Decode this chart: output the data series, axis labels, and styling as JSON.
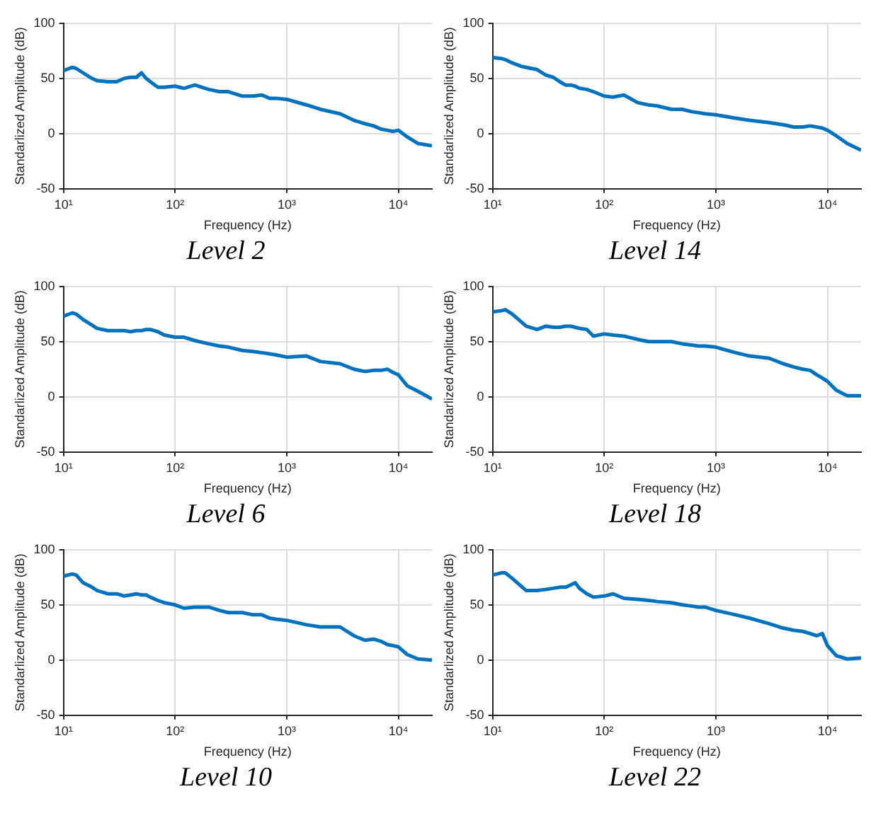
{
  "chart_data": [
    {
      "type": "line",
      "title": "Level 2",
      "xlabel": "Frequency (Hz)",
      "ylabel": "Standarlized Amplitude (dB)",
      "log": "x",
      "grid": true,
      "xlim": [
        10,
        20000
      ],
      "ylim": [
        -50,
        100
      ],
      "xticks": [
        {
          "value": 10,
          "label": "10¹"
        },
        {
          "value": 100,
          "label": "10²"
        },
        {
          "value": 1000,
          "label": "10³"
        },
        {
          "value": 10000,
          "label": "10⁴"
        }
      ],
      "yticks": [
        -50,
        0,
        50,
        100
      ],
      "x": [
        10,
        12,
        13,
        15,
        18,
        20,
        25,
        30,
        35,
        40,
        45,
        50,
        55,
        60,
        70,
        80,
        100,
        120,
        150,
        200,
        250,
        300,
        400,
        500,
        600,
        700,
        800,
        1000,
        1500,
        2000,
        3000,
        4000,
        5000,
        6000,
        7000,
        8000,
        9000,
        10000,
        12000,
        15000,
        20000
      ],
      "series": [
        {
          "color": "#0072bd",
          "values": [
            57,
            60,
            59,
            55,
            50,
            48,
            47,
            47,
            50,
            51,
            51,
            55,
            50,
            47,
            42,
            42,
            43,
            41,
            44,
            40,
            38,
            38,
            34,
            34,
            35,
            32,
            32,
            31,
            26,
            22,
            18,
            12,
            9,
            7,
            4,
            3,
            2,
            3,
            -3,
            -9,
            -11
          ]
        }
      ]
    },
    {
      "type": "line",
      "title": "Level 14",
      "xlabel": "Frequency (Hz)",
      "ylabel": "Standarlized Amplitude (dB)",
      "log": "x",
      "grid": true,
      "xlim": [
        10,
        20000
      ],
      "ylim": [
        -50,
        100
      ],
      "xticks": [
        {
          "value": 10,
          "label": "10¹"
        },
        {
          "value": 100,
          "label": "10²"
        },
        {
          "value": 1000,
          "label": "10³"
        },
        {
          "value": 10000,
          "label": "10⁴"
        }
      ],
      "yticks": [
        -50,
        0,
        50,
        100
      ],
      "x": [
        10,
        12,
        13,
        15,
        18,
        20,
        25,
        30,
        35,
        40,
        45,
        50,
        55,
        60,
        70,
        80,
        100,
        120,
        150,
        200,
        250,
        300,
        400,
        500,
        600,
        700,
        800,
        1000,
        1500,
        2000,
        3000,
        4000,
        5000,
        6000,
        7000,
        8000,
        9000,
        10000,
        12000,
        15000,
        20000
      ],
      "series": [
        {
          "color": "#0072bd",
          "values": [
            69,
            68,
            67,
            64,
            61,
            60,
            58,
            53,
            51,
            47,
            44,
            44,
            43,
            41,
            40,
            38,
            34,
            33,
            35,
            28,
            26,
            25,
            22,
            22,
            20,
            19,
            18,
            17,
            14,
            12,
            10,
            8,
            6,
            6,
            7,
            6,
            5,
            3,
            -2,
            -9,
            -15
          ]
        }
      ]
    },
    {
      "type": "line",
      "title": "Level 6",
      "xlabel": "Frequency (Hz)",
      "ylabel": "Standarlized Amplitude (dB)",
      "log": "x",
      "grid": true,
      "xlim": [
        10,
        20000
      ],
      "ylim": [
        -50,
        100
      ],
      "xticks": [
        {
          "value": 10,
          "label": "10¹"
        },
        {
          "value": 100,
          "label": "10²"
        },
        {
          "value": 1000,
          "label": "10³"
        },
        {
          "value": 10000,
          "label": "10⁴"
        }
      ],
      "yticks": [
        -50,
        0,
        50,
        100
      ],
      "x": [
        10,
        12,
        13,
        15,
        18,
        20,
        25,
        30,
        35,
        40,
        45,
        50,
        55,
        60,
        70,
        80,
        100,
        120,
        150,
        200,
        250,
        300,
        400,
        500,
        600,
        700,
        800,
        1000,
        1500,
        2000,
        3000,
        4000,
        5000,
        6000,
        7000,
        8000,
        9000,
        10000,
        12000,
        15000,
        20000
      ],
      "series": [
        {
          "color": "#0072bd",
          "values": [
            73,
            76,
            75,
            70,
            65,
            62,
            60,
            60,
            60,
            59,
            60,
            60,
            61,
            61,
            59,
            56,
            54,
            54,
            51,
            48,
            46,
            45,
            42,
            41,
            40,
            39,
            38,
            36,
            37,
            32,
            30,
            25,
            23,
            24,
            24,
            25,
            22,
            20,
            10,
            5,
            -2
          ]
        }
      ]
    },
    {
      "type": "line",
      "title": "Level 18",
      "xlabel": "Frequency (Hz)",
      "ylabel": "Standarlized Amplitude (dB)",
      "log": "x",
      "grid": true,
      "xlim": [
        10,
        20000
      ],
      "ylim": [
        -50,
        100
      ],
      "xticks": [
        {
          "value": 10,
          "label": "10¹"
        },
        {
          "value": 100,
          "label": "10²"
        },
        {
          "value": 1000,
          "label": "10³"
        },
        {
          "value": 10000,
          "label": "10⁴"
        }
      ],
      "yticks": [
        -50,
        0,
        50,
        100
      ],
      "x": [
        10,
        12,
        13,
        15,
        18,
        20,
        25,
        30,
        35,
        40,
        45,
        50,
        55,
        60,
        70,
        80,
        100,
        120,
        150,
        200,
        250,
        300,
        400,
        500,
        600,
        700,
        800,
        1000,
        1500,
        2000,
        3000,
        4000,
        5000,
        6000,
        7000,
        8000,
        9000,
        10000,
        12000,
        15000,
        20000
      ],
      "series": [
        {
          "color": "#0072bd",
          "values": [
            77,
            78,
            79,
            75,
            68,
            64,
            61,
            64,
            63,
            63,
            64,
            64,
            63,
            62,
            61,
            55,
            57,
            56,
            55,
            52,
            50,
            50,
            50,
            48,
            47,
            46,
            46,
            45,
            40,
            37,
            35,
            30,
            27,
            25,
            24,
            20,
            17,
            14,
            6,
            1,
            1
          ]
        }
      ]
    },
    {
      "type": "line",
      "title": "Level 10",
      "xlabel": "Frequency (Hz)",
      "ylabel": "Standarlized Amplitude (dB)",
      "log": "x",
      "grid": true,
      "xlim": [
        10,
        20000
      ],
      "ylim": [
        -50,
        100
      ],
      "xticks": [
        {
          "value": 10,
          "label": "10¹"
        },
        {
          "value": 100,
          "label": "10²"
        },
        {
          "value": 1000,
          "label": "10³"
        },
        {
          "value": 10000,
          "label": "10⁴"
        }
      ],
      "yticks": [
        -50,
        0,
        50,
        100
      ],
      "x": [
        10,
        12,
        13,
        15,
        18,
        20,
        25,
        30,
        35,
        40,
        45,
        50,
        55,
        60,
        70,
        80,
        100,
        120,
        150,
        200,
        250,
        300,
        400,
        500,
        600,
        700,
        800,
        1000,
        1500,
        2000,
        3000,
        4000,
        5000,
        6000,
        7000,
        8000,
        9000,
        10000,
        12000,
        15000,
        20000
      ],
      "series": [
        {
          "color": "#0072bd",
          "values": [
            76,
            78,
            77,
            70,
            66,
            63,
            60,
            60,
            58,
            59,
            60,
            59,
            59,
            57,
            54,
            52,
            50,
            47,
            48,
            48,
            45,
            43,
            43,
            41,
            41,
            38,
            37,
            36,
            32,
            30,
            30,
            22,
            18,
            19,
            17,
            14,
            13,
            12,
            5,
            1,
            0
          ]
        }
      ]
    },
    {
      "type": "line",
      "title": "Level 22",
      "xlabel": "Frequency (Hz)",
      "ylabel": "Standarlized Amplitude (dB)",
      "log": "x",
      "grid": true,
      "xlim": [
        10,
        20000
      ],
      "ylim": [
        -50,
        100
      ],
      "xticks": [
        {
          "value": 10,
          "label": "10¹"
        },
        {
          "value": 100,
          "label": "10²"
        },
        {
          "value": 1000,
          "label": "10³"
        },
        {
          "value": 10000,
          "label": "10⁴"
        }
      ],
      "yticks": [
        -50,
        0,
        50,
        100
      ],
      "x": [
        10,
        12,
        13,
        15,
        18,
        20,
        25,
        30,
        35,
        40,
        45,
        50,
        55,
        60,
        70,
        80,
        100,
        120,
        150,
        200,
        250,
        300,
        400,
        500,
        600,
        700,
        800,
        1000,
        1500,
        2000,
        3000,
        4000,
        5000,
        6000,
        7000,
        8000,
        9000,
        10000,
        12000,
        15000,
        20000
      ],
      "series": [
        {
          "color": "#0072bd",
          "values": [
            77,
            79,
            79,
            74,
            67,
            63,
            63,
            64,
            65,
            66,
            66,
            68,
            70,
            65,
            60,
            57,
            58,
            60,
            56,
            55,
            54,
            53,
            52,
            50,
            49,
            48,
            48,
            45,
            41,
            38,
            33,
            29,
            27,
            26,
            24,
            22,
            24,
            13,
            4,
            1,
            2
          ]
        }
      ]
    }
  ]
}
